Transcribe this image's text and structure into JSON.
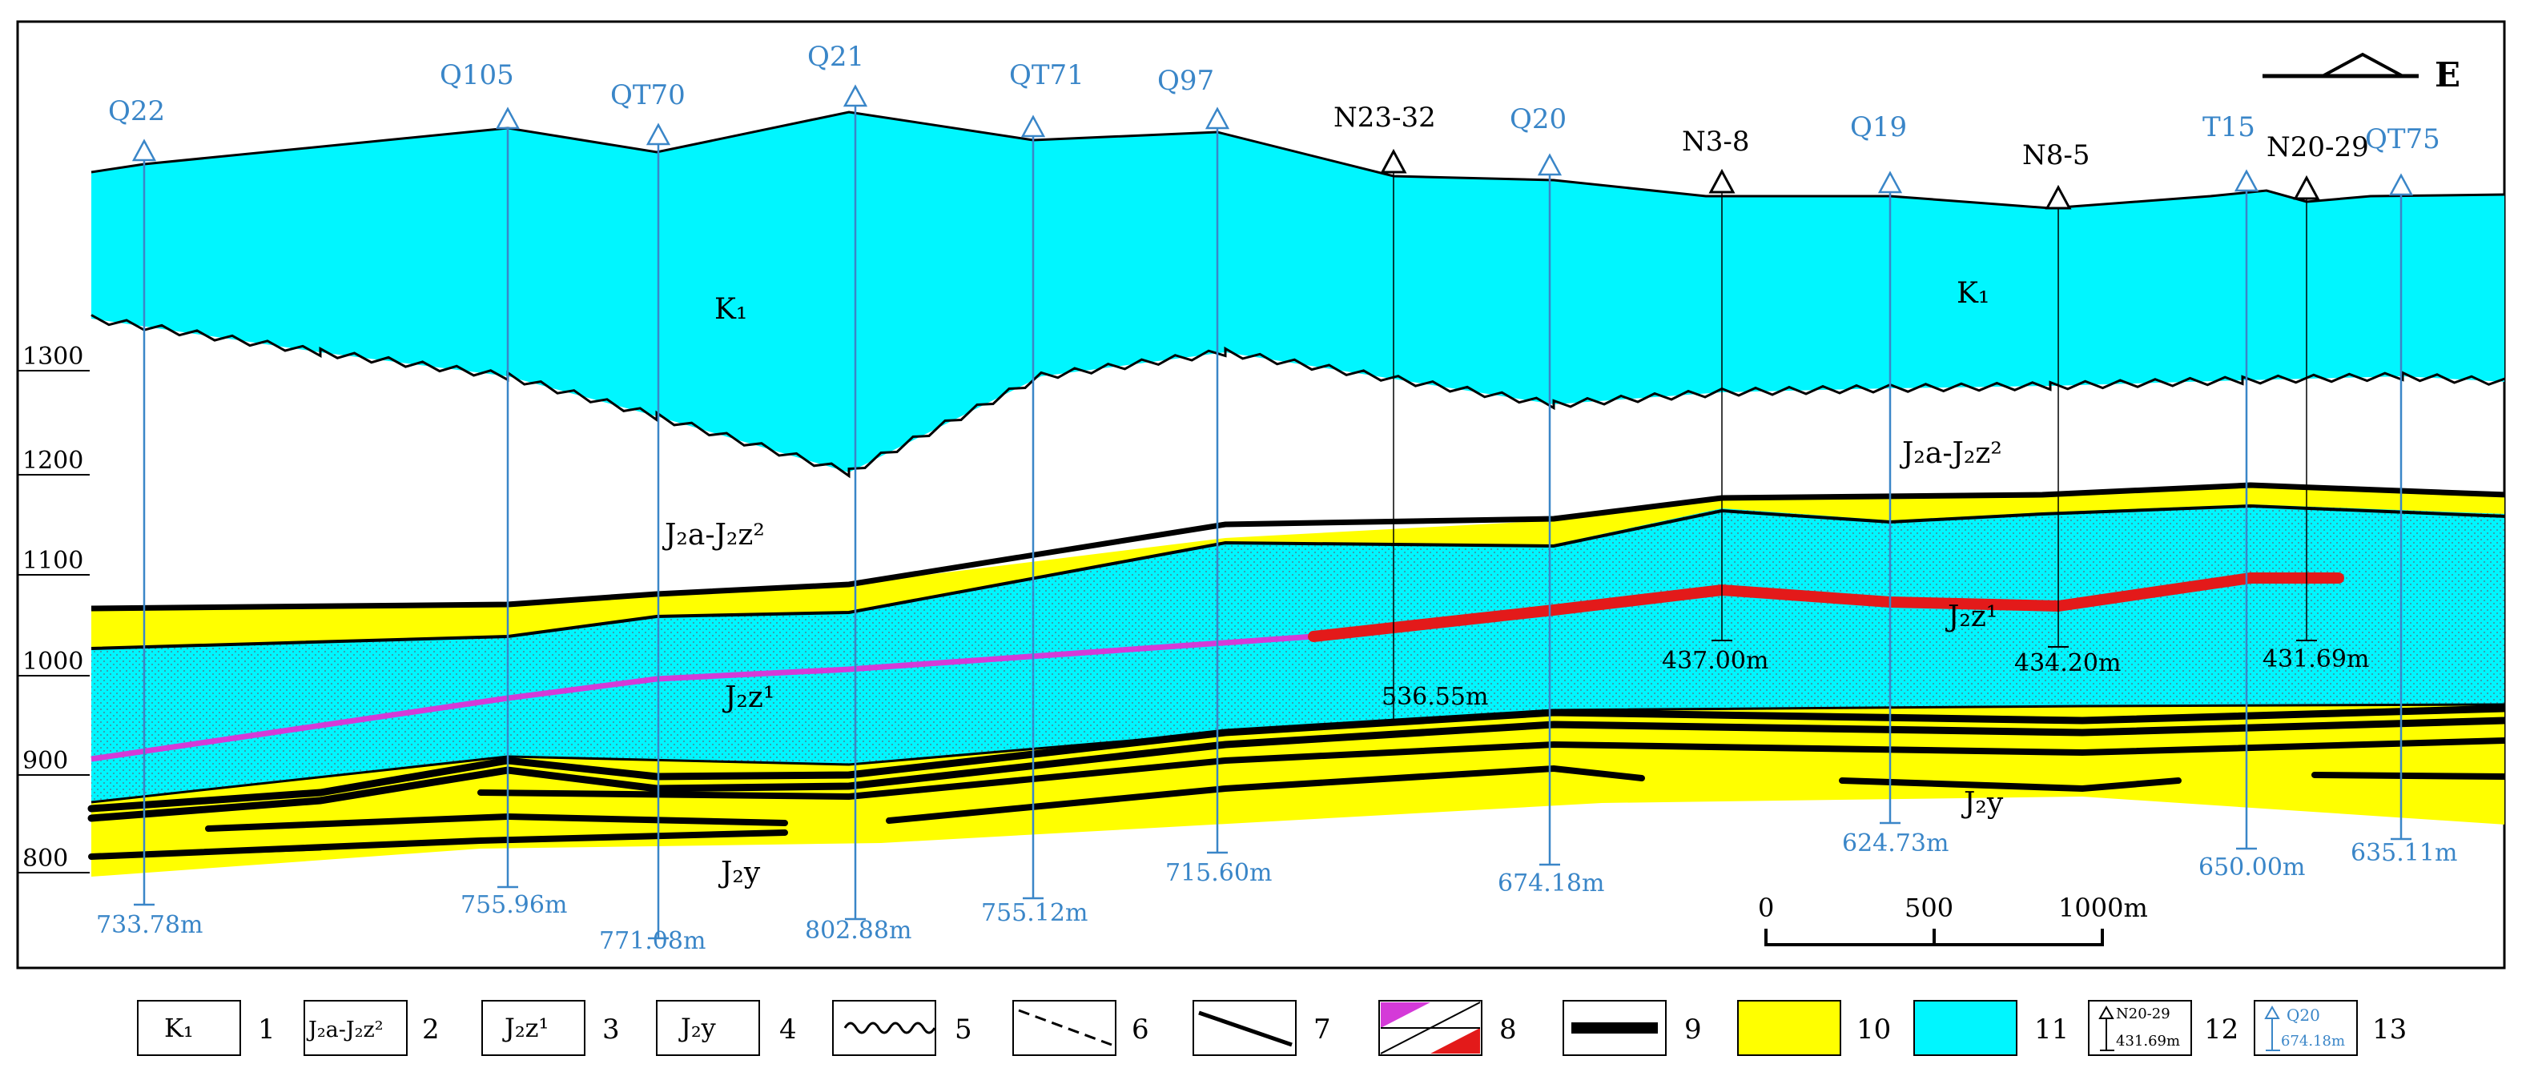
{
  "colors": {
    "cyan": "#00f6ff",
    "yellow": "#ffff00",
    "coal": "#000000",
    "blue_well": "#3a86c8",
    "magenta": "#d43ad8",
    "red": "#e31a1a"
  },
  "direction_label": "E",
  "elevation_labels": [
    "1300",
    "1200",
    "1100",
    "1000",
    "900",
    "800"
  ],
  "unit_labels": {
    "k1_left": "K₁",
    "k1_right": "K₁",
    "j2a_left": "J₂a-J₂z²",
    "j2a_right": "J₂a-J₂z²",
    "j2z1_left": "J₂z¹",
    "j2z1_right": "J₂z¹",
    "j2y_left": "J₂y",
    "j2y_right": "J₂y"
  },
  "wells_blue": [
    {
      "name": "Q22",
      "depth": "733.78m"
    },
    {
      "name": "Q105",
      "depth": "755.96m"
    },
    {
      "name": "QT70",
      "depth": "771.08m"
    },
    {
      "name": "Q21",
      "depth": "802.88m"
    },
    {
      "name": "QT71",
      "depth": "755.12m"
    },
    {
      "name": "Q97",
      "depth": "715.60m"
    },
    {
      "name": "Q20",
      "depth": "674.18m"
    },
    {
      "name": "Q19",
      "depth": "624.73m"
    },
    {
      "name": "T15",
      "depth": "650.00m"
    },
    {
      "name": "QT75",
      "depth": "635.11m"
    }
  ],
  "wells_black": [
    {
      "name": "N23-32",
      "depth": "536.55m"
    },
    {
      "name": "N3-8",
      "depth": "437.00m"
    },
    {
      "name": "N8-5",
      "depth": "434.20m"
    },
    {
      "name": "N20-29",
      "depth": "431.69m"
    }
  ],
  "scale": {
    "labels": [
      "0",
      "500",
      "1000m"
    ]
  },
  "legend": [
    {
      "num": "1",
      "text": "K₁"
    },
    {
      "num": "2",
      "text": "J₂a-J₂z²"
    },
    {
      "num": "3",
      "text": "J₂z¹"
    },
    {
      "num": "4",
      "text": "J₂y"
    },
    {
      "num": "5",
      "text": ""
    },
    {
      "num": "6",
      "text": ""
    },
    {
      "num": "7",
      "text": ""
    },
    {
      "num": "8",
      "text": ""
    },
    {
      "num": "9",
      "text": ""
    },
    {
      "num": "10",
      "text": ""
    },
    {
      "num": "11",
      "text": ""
    },
    {
      "num": "12",
      "text": ""
    },
    {
      "num": "13",
      "text": ""
    }
  ],
  "legend_samples": {
    "black_well_name": "N20-29",
    "black_well_depth": "431.69m",
    "blue_well_name": "Q20",
    "blue_well_depth": "674.18m"
  }
}
